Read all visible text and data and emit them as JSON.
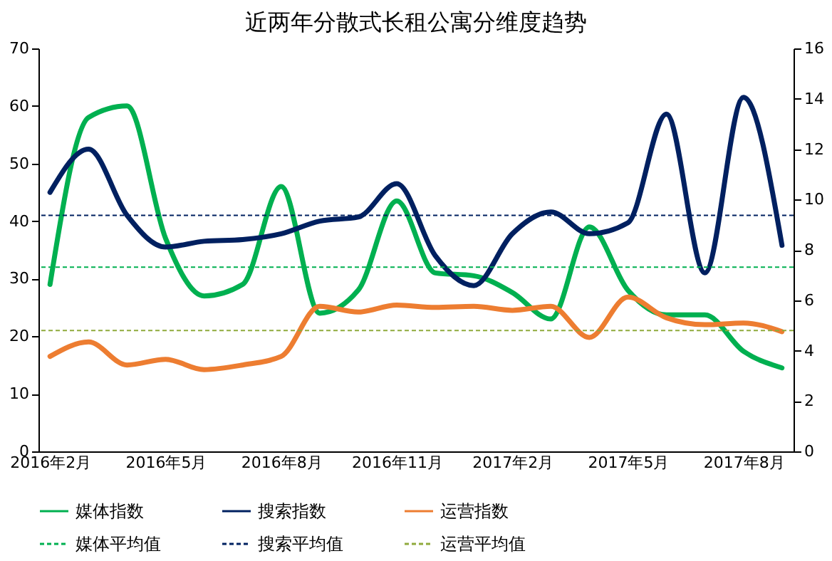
{
  "chart_data": {
    "type": "line",
    "title": "近两年分散式长租公寓分维度趋势",
    "categories": [
      "2016年2月",
      null,
      null,
      "2016年5月",
      null,
      null,
      "2016年8月",
      null,
      null,
      "2016年11月",
      null,
      null,
      "2017年2月",
      null,
      null,
      "2017年5月",
      null,
      null,
      "2017年8月",
      null
    ],
    "series": [
      {
        "name": "媒体指数",
        "color": "#00b050",
        "values": [
          29,
          58,
          60,
          37,
          27,
          29,
          46,
          24,
          28,
          43.5,
          31,
          30.5,
          27.6,
          23,
          39,
          28,
          23.7,
          23.7,
          17.4,
          14.5
        ]
      },
      {
        "name": "搜索指数",
        "color": "#002060",
        "values": [
          45,
          52.5,
          41,
          35.5,
          36.5,
          36.8,
          37.8,
          40,
          40.7,
          46.5,
          34,
          28.8,
          37.8,
          41.6,
          37.8,
          39.7,
          58.6,
          31,
          61.5,
          35.8
        ]
      },
      {
        "name": "运营指数",
        "color": "#ed7d31",
        "values": [
          16.5,
          19,
          15,
          16,
          14.2,
          15,
          16.5,
          25.2,
          24.2,
          25.4,
          25,
          25.2,
          24.5,
          25.2,
          19.8,
          26.8,
          23.2,
          22,
          22.3,
          20.8
        ]
      }
    ],
    "ref_lines": [
      {
        "axis": "y",
        "value": 32,
        "label": "媒体平均值",
        "color": "#00b050",
        "line_style": "dashed"
      },
      {
        "axis": "y",
        "value": 41,
        "label": "搜索平均值",
        "color": "#002060",
        "line_style": "dashed"
      },
      {
        "axis": "y",
        "value": 21,
        "label": "运营平均值",
        "color": "#8faa3c",
        "line_style": "dashed"
      }
    ],
    "ylim": [
      0,
      70
    ],
    "yticks": [
      0,
      10,
      20,
      30,
      40,
      50,
      60,
      70
    ],
    "y2lim": [
      0,
      16
    ],
    "y2ticks": [
      0,
      2,
      4,
      6,
      8,
      10,
      12,
      14,
      16
    ],
    "grid": false,
    "legend": "bottom",
    "marker": "none",
    "line_style": "solid"
  }
}
